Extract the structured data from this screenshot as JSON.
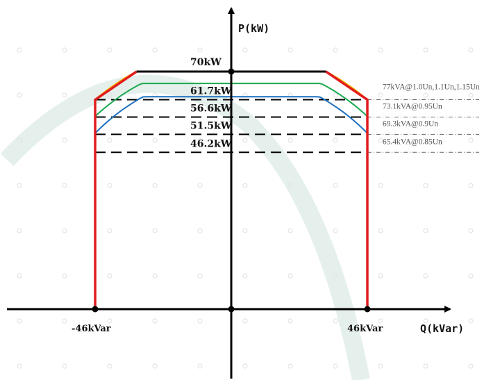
{
  "chart_data": {
    "type": "line",
    "title": "",
    "xlabel": "Q(kVar)",
    "ylabel": "P(kW)",
    "x_ticks": [
      "-46kVar",
      "46kVar"
    ],
    "p_max_label": "70kW",
    "p_max": 70,
    "q_limit": 46,
    "capability_envelope": {
      "color": "#e11d1d",
      "points": [
        [
          -46,
          0
        ],
        [
          -46,
          61.7
        ],
        [
          -32,
          70
        ],
        [
          32,
          70
        ],
        [
          46,
          61.7
        ],
        [
          46,
          0
        ]
      ]
    },
    "levels": [
      {
        "p": 61.7,
        "label": "61.7kW",
        "note": "77kVA@1.0Un,1.1Un,1.15Un"
      },
      {
        "p": 56.6,
        "label": "56.6kW",
        "note": "73.1kVA@0.95Un"
      },
      {
        "p": 51.5,
        "label": "51.5kW",
        "note": "69.3kVA@0.9Un"
      },
      {
        "p": 46.2,
        "label": "46.2kW",
        "note": "65.4kVA@0.85Un"
      }
    ],
    "series": [
      {
        "color": "#f5b800",
        "s_kva": 77.0,
        "p_cap": 70
      },
      {
        "color": "#1aa84f",
        "s_kva": 73.1,
        "p_cap": 66.5
      },
      {
        "color": "#1b6fc0",
        "s_kva": 69.3,
        "p_cap": 62.6
      }
    ]
  }
}
